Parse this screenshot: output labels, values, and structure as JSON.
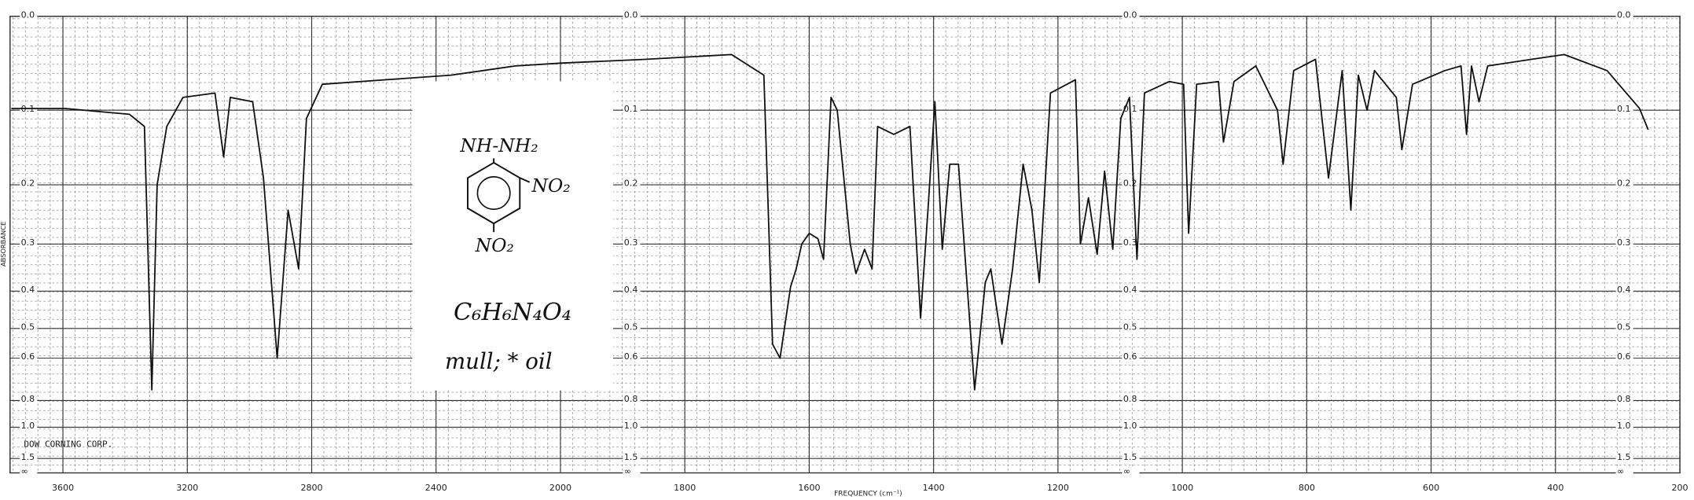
{
  "chart_data": {
    "type": "line",
    "y_axis_label": "ABSORBANCE",
    "x_axis_label": "FREQUENCY (cm⁻¹)",
    "y_scale": "absorbance",
    "grid": true,
    "xlim": [
      3770,
      200
    ],
    "xticks": [
      3600,
      3200,
      2800,
      2400,
      2000,
      1800,
      1600,
      1400,
      1200,
      1000,
      800,
      600,
      400,
      200
    ],
    "ylim": [
      0,
      null
    ],
    "yticks": [
      {
        "value": 0,
        "label": "0.0"
      },
      0.1,
      0.2,
      0.3,
      0.4,
      0.5,
      0.6,
      0.8,
      {
        "value": 1,
        "label": "1.0"
      },
      1.5,
      {
        "value": null,
        "label": "∞"
      }
    ],
    "x": [
      3766,
      3593,
      3386,
      3338,
      3314,
      3297,
      3266,
      3214,
      3111,
      3083,
      3062,
      2990,
      2955,
      2911,
      2876,
      2842,
      2817,
      2766,
      2559,
      2352,
      2145,
      2000,
      1864,
      1725,
      1673,
      1659,
      1647,
      1630,
      1621,
      1612,
      1600,
      1586,
      1577,
      1565,
      1555,
      1534,
      1525,
      1511,
      1499,
      1490,
      1464,
      1438,
      1421,
      1409,
      1398,
      1386,
      1374,
      1360,
      1334,
      1317,
      1308,
      1290,
      1273,
      1256,
      1242,
      1230,
      1212,
      1172,
      1164,
      1151,
      1137,
      1125,
      1112,
      1099,
      1085,
      1073,
      1061,
      1021,
      998,
      990,
      977,
      942,
      934,
      917,
      882,
      847,
      838,
      821,
      786,
      765,
      743,
      729,
      717,
      703,
      691,
      656,
      647,
      630,
      578,
      552,
      543,
      535,
      523,
      509,
      439,
      386,
      317,
      265,
      251
    ],
    "series": [
      {
        "color": "#111111",
        "values": [
          0.098,
          0.098,
          0.105,
          0.12,
          0.74,
          0.2,
          0.12,
          0.085,
          0.08,
          0.16,
          0.085,
          0.09,
          0.19,
          0.6,
          0.24,
          0.35,
          0.11,
          0.07,
          0.065,
          0.06,
          0.05,
          0.047,
          0.043,
          0.038,
          0.06,
          0.55,
          0.6,
          0.39,
          0.35,
          0.3,
          0.28,
          0.29,
          0.33,
          0.085,
          0.1,
          0.3,
          0.36,
          0.31,
          0.35,
          0.12,
          0.13,
          0.12,
          0.47,
          0.24,
          0.09,
          0.31,
          0.17,
          0.17,
          0.74,
          0.38,
          0.35,
          0.55,
          0.35,
          0.17,
          0.24,
          0.38,
          0.08,
          0.065,
          0.3,
          0.22,
          0.32,
          0.18,
          0.31,
          0.11,
          0.085,
          0.33,
          0.08,
          0.067,
          0.07,
          0.28,
          0.07,
          0.067,
          0.14,
          0.067,
          0.05,
          0.1,
          0.17,
          0.055,
          0.043,
          0.19,
          0.055,
          0.24,
          0.06,
          0.1,
          0.055,
          0.085,
          0.15,
          0.07,
          0.055,
          0.05,
          0.13,
          0.05,
          0.09,
          0.05,
          0.043,
          0.038,
          0.055,
          0.098,
          0.124
        ]
      }
    ],
    "annotations": {
      "company": "DOW CORNING CORP.",
      "substituent_top": "NH-NH₂",
      "substituent_right": "NO₂",
      "substituent_bottom": "NO₂",
      "formula": "C₆H₆N₄O₄",
      "sample": "mull; * oil"
    }
  }
}
